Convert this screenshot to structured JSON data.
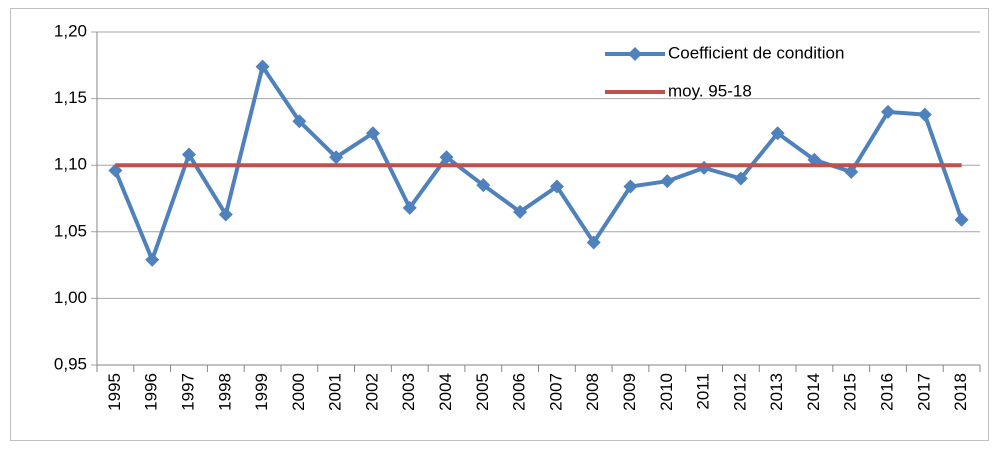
{
  "chart_data": {
    "type": "line",
    "categories": [
      "1995",
      "1996",
      "1997",
      "1998",
      "1999",
      "2000",
      "2001",
      "2002",
      "2003",
      "2004",
      "2005",
      "2006",
      "2007",
      "2008",
      "2009",
      "2010",
      "2011",
      "2012",
      "2013",
      "2014",
      "2015",
      "2016",
      "2017",
      "2018"
    ],
    "series": [
      {
        "name": "Coefficient de condition",
        "color": "#4f81bd",
        "marker": "diamond",
        "values": [
          1.096,
          1.029,
          1.108,
          1.063,
          1.174,
          1.133,
          1.106,
          1.124,
          1.068,
          1.106,
          1.085,
          1.065,
          1.084,
          1.042,
          1.084,
          1.088,
          1.098,
          1.09,
          1.124,
          1.104,
          1.095,
          1.14,
          1.138,
          1.059
        ]
      },
      {
        "name": "moy. 95-18",
        "color": "#c0504d",
        "values": [
          1.1,
          1.1,
          1.1,
          1.1,
          1.1,
          1.1,
          1.1,
          1.1,
          1.1,
          1.1,
          1.1,
          1.1,
          1.1,
          1.1,
          1.1,
          1.1,
          1.1,
          1.1,
          1.1,
          1.1,
          1.1,
          1.1,
          1.1,
          1.1
        ]
      }
    ],
    "ylim": [
      0.95,
      1.2
    ],
    "yticks": [
      {
        "value": 0.95,
        "label": "0,95"
      },
      {
        "value": 1.0,
        "label": "1,00"
      },
      {
        "value": 1.05,
        "label": "1,05"
      },
      {
        "value": 1.1,
        "label": "1,10"
      },
      {
        "value": 1.15,
        "label": "1,15"
      },
      {
        "value": 1.2,
        "label": "1,20"
      }
    ],
    "grid": true,
    "legend": "top-right"
  }
}
